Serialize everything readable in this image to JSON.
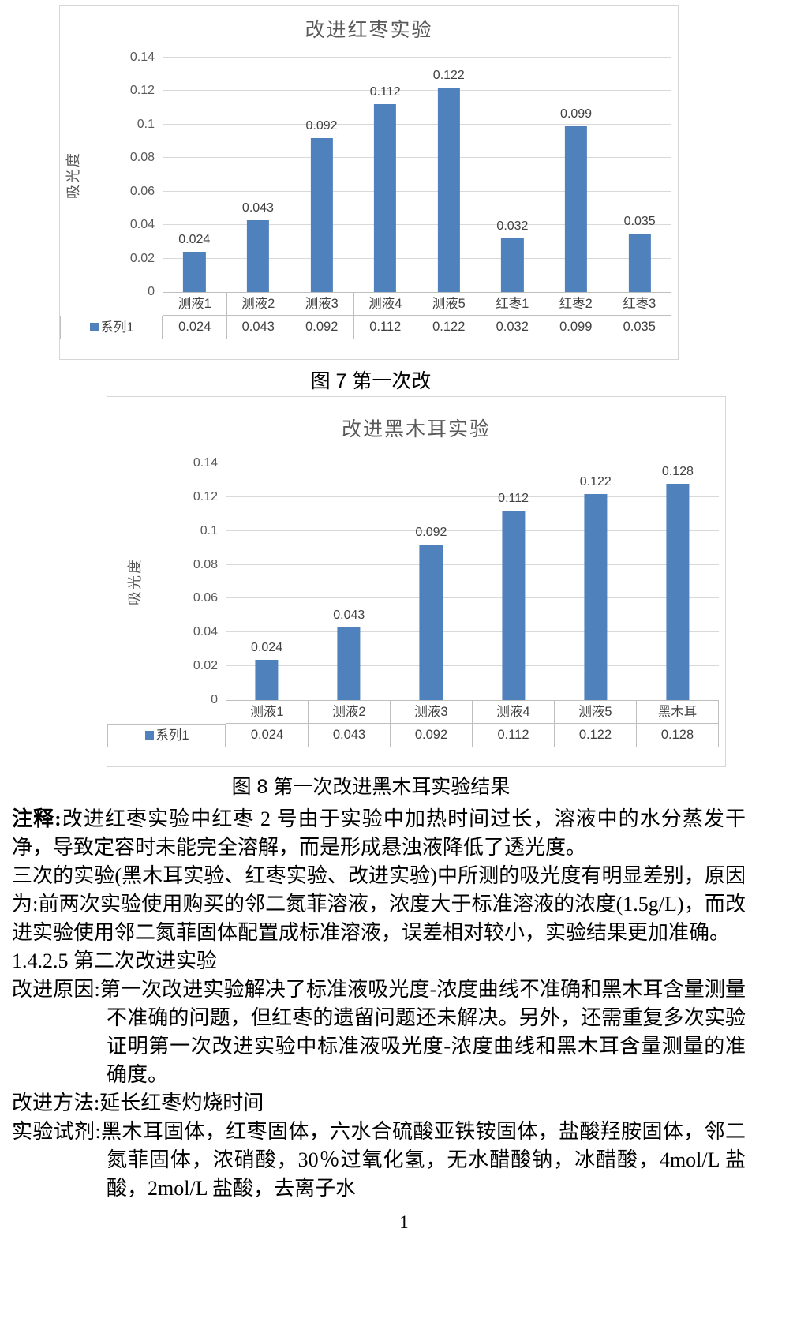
{
  "colors": {
    "bar": "#4F81BD",
    "grid": "#d9d9d9",
    "table_border": "#bfbfbf",
    "axis_text": "#595959"
  },
  "chart_data": [
    {
      "type": "bar",
      "title": "改进红枣实验",
      "ylabel": "吸光度",
      "categories": [
        "测液1",
        "测液2",
        "测液3",
        "测液4",
        "测液5",
        "红枣1",
        "红枣2",
        "红枣3"
      ],
      "series": [
        {
          "name": "系列1",
          "values": [
            0.024,
            0.043,
            0.092,
            0.112,
            0.122,
            0.032,
            0.099,
            0.035
          ]
        }
      ],
      "labels": [
        "0.024",
        "0.043",
        "0.092",
        "0.112",
        "0.122",
        "0.032",
        "0.099",
        "0.035"
      ],
      "ylim": [
        0,
        0.14
      ],
      "yticks": [
        "0",
        "0.02",
        "0.04",
        "0.06",
        "0.08",
        "0.1",
        "0.12",
        "0.14"
      ],
      "grid": true,
      "legend_position": "table-left"
    },
    {
      "type": "bar",
      "title": "改进黑木耳实验",
      "ylabel": "吸光度",
      "categories": [
        "测液1",
        "测液2",
        "测液3",
        "测液4",
        "测液5",
        "黑木耳"
      ],
      "series": [
        {
          "name": "系列1",
          "values": [
            0.024,
            0.043,
            0.092,
            0.112,
            0.122,
            0.128
          ]
        }
      ],
      "labels": [
        "0.024",
        "0.043",
        "0.092",
        "0.112",
        "0.122",
        "0.128"
      ],
      "ylim": [
        0,
        0.14
      ],
      "yticks": [
        "0",
        "0.02",
        "0.04",
        "0.06",
        "0.08",
        "0.1",
        "0.12",
        "0.14"
      ],
      "grid": true,
      "legend_position": "table-left"
    }
  ],
  "captions": {
    "fig7": "图 7 第一次改",
    "fig8": "图 8 第一次改进黑木耳实验结果"
  },
  "body": {
    "paragraphs": [
      {
        "label": "注释:",
        "text": "改进红枣实验中红枣 2 号由于实验中加热时间过长，溶液中的水分蒸发干净，导致定容时未能完全溶解，而是形成悬浊液降低了透光度。"
      },
      {
        "label": "",
        "text": "三次的实验(黑木耳实验、红枣实验、改进实验)中所测的吸光度有明显差别，原因为:前两次实验使用购买的邻二氮菲溶液，浓度大于标准溶液的浓度(1.5g/L)，而改进实验使用邻二氮菲固体配置成标准溶液，误差相对较小，实验结果更加准确。"
      },
      {
        "label": "",
        "text": "1.4.2.5 第二次改进实验"
      },
      {
        "label": "改进原因:",
        "text": "第一次改进实验解决了标准液吸光度-浓度曲线不准确和黑木耳含量测量不准确的问题，但红枣的遗留问题还未解决。另外，还需重复多次实验证明第一次改进实验中标准液吸光度-浓度曲线和黑木耳含量测量的准确度。"
      },
      {
        "label": "改进方法:",
        "text": "延长红枣灼烧时间"
      },
      {
        "label": "实验试剂:",
        "text": "黑木耳固体，红枣固体，六水合硫酸亚铁铵固体，盐酸羟胺固体，邻二氮菲固体，浓硝酸，30％过氧化氢，无水醋酸钠，冰醋酸，4mol/L 盐酸，2mol/L 盐酸，去离子水"
      }
    ]
  },
  "page": {
    "number": "1"
  }
}
